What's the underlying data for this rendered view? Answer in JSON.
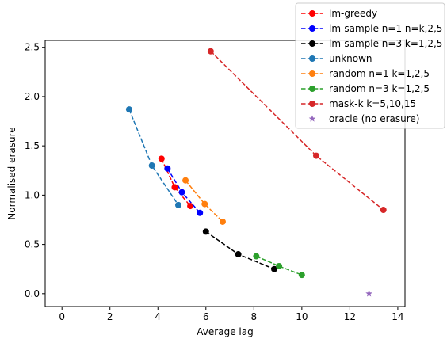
{
  "chart_data": {
    "type": "line",
    "xlabel": "Average lag",
    "ylabel": "Normalised erasure",
    "xlim": [
      -0.7,
      14.3
    ],
    "ylim": [
      -0.13,
      2.57
    ],
    "xticks": [
      0,
      2,
      4,
      6,
      8,
      10,
      12,
      14
    ],
    "yticks": [
      0.0,
      0.5,
      1.0,
      1.5,
      2.0,
      2.5
    ],
    "grid": false,
    "legend_position": "top-right",
    "series": [
      {
        "name": "lm-greedy",
        "color": "#ff0000",
        "marker": "circle",
        "linestyle": "dashed",
        "x": [
          4.15,
          4.7,
          5.35
        ],
        "y": [
          1.37,
          1.08,
          0.89
        ]
      },
      {
        "name": "lm-sample n=1 n=k,2,5",
        "color": "#0000ff",
        "marker": "circle",
        "linestyle": "dashed",
        "x": [
          4.4,
          5.0,
          5.75
        ],
        "y": [
          1.27,
          1.03,
          0.82
        ]
      },
      {
        "name": "lm-sample n=3 k=1,2,5",
        "color": "#000000",
        "marker": "circle",
        "linestyle": "dashed",
        "x": [
          6.0,
          7.35,
          8.85
        ],
        "y": [
          0.63,
          0.4,
          0.25
        ]
      },
      {
        "name": "unknown",
        "color": "#1f77b4",
        "marker": "circle",
        "linestyle": "dashed",
        "x": [
          2.8,
          3.75,
          4.85
        ],
        "y": [
          1.87,
          1.3,
          0.9
        ]
      },
      {
        "name": "random n=1 k=1,2,5",
        "color": "#ff7f0e",
        "marker": "circle",
        "linestyle": "dashed",
        "x": [
          5.15,
          5.95,
          6.7
        ],
        "y": [
          1.15,
          0.91,
          0.73
        ]
      },
      {
        "name": "random n=3 k=1,2,5",
        "color": "#2ca02c",
        "marker": "circle",
        "linestyle": "dashed",
        "x": [
          8.1,
          9.05,
          10.0
        ],
        "y": [
          0.38,
          0.28,
          0.19
        ]
      },
      {
        "name": "mask-k k=5,10,15",
        "color": "#d62728",
        "marker": "circle",
        "linestyle": "dashed",
        "x": [
          6.2,
          10.6,
          13.4
        ],
        "y": [
          2.46,
          1.4,
          0.85
        ]
      },
      {
        "name": "oracle (no erasure)",
        "color": "#9467bd",
        "marker": "star",
        "linestyle": "none",
        "x": [
          12.8
        ],
        "y": [
          0.0
        ]
      }
    ]
  }
}
